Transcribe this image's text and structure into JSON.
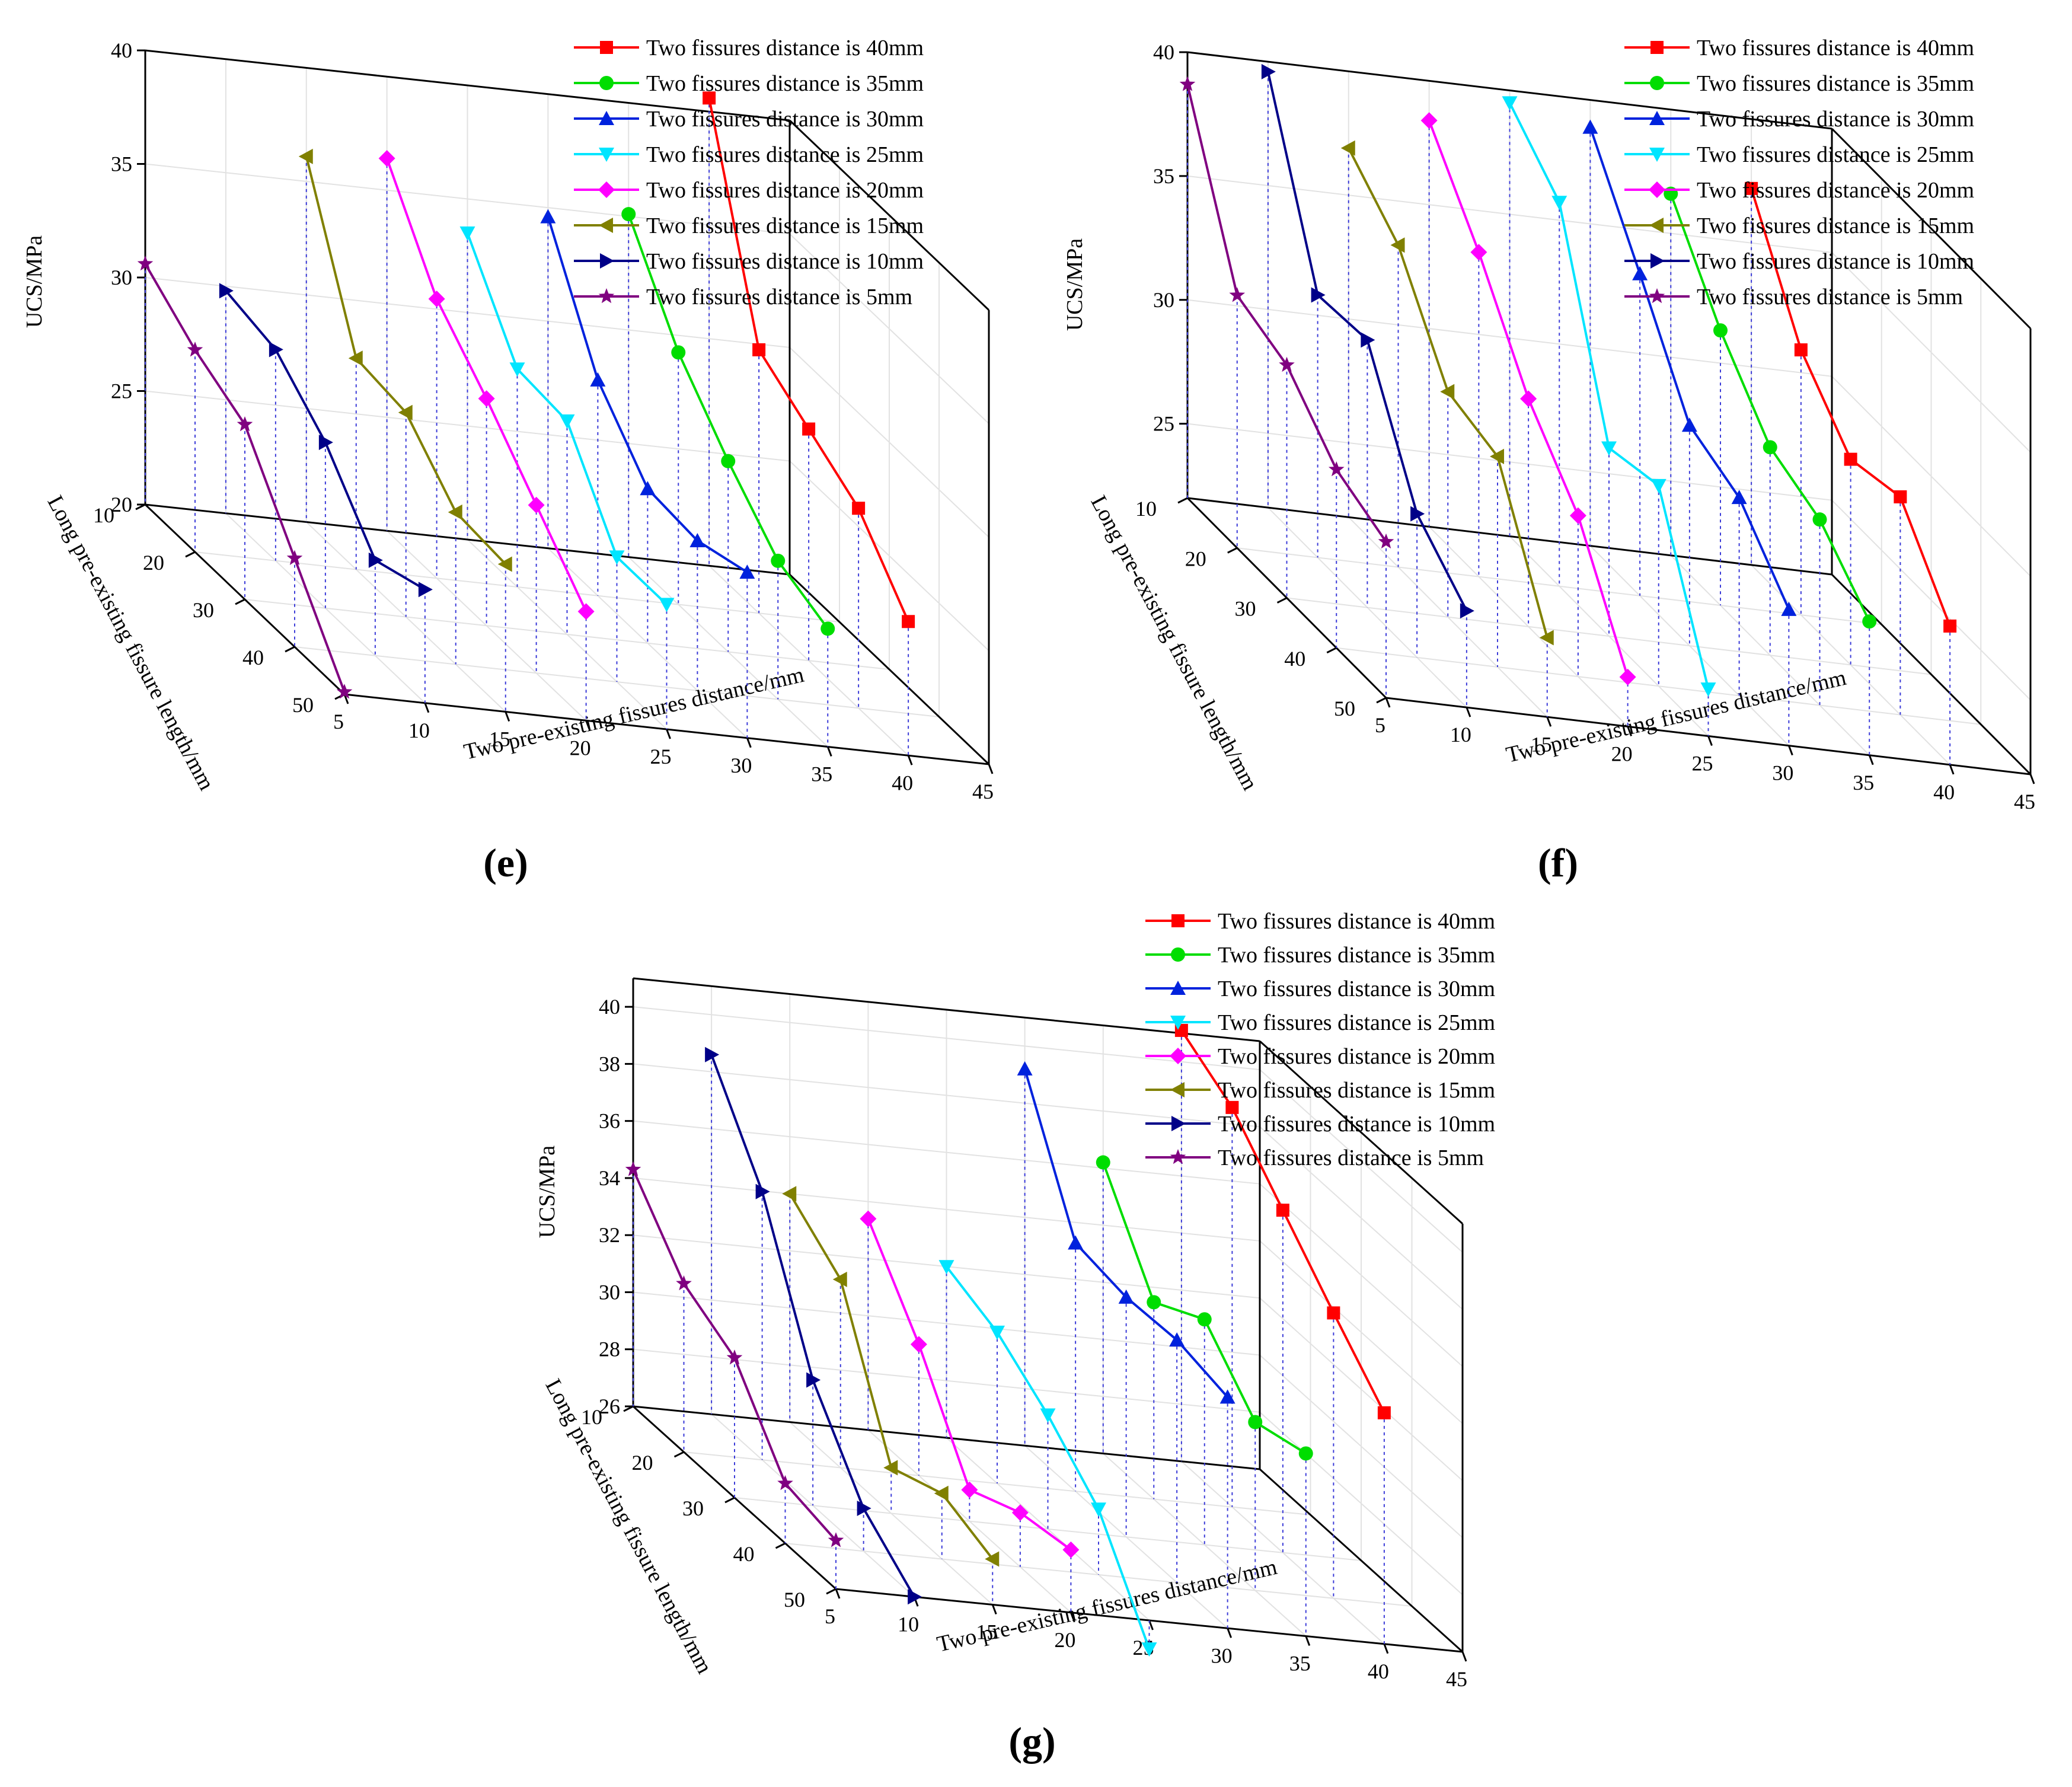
{
  "figure": {
    "series_colors": {
      "40mm": "#ff0000",
      "35mm": "#00dd00",
      "30mm": "#0022dd",
      "25mm": "#00e5ff",
      "20mm": "#ff00ff",
      "15mm": "#808000",
      "10mm": "#000088",
      "5mm": "#800080"
    }
  },
  "chart_data": [
    {
      "panel": "(e)",
      "type": "line",
      "subtype": "3d-waterfall",
      "xlabel": "Two pre-existing fissures distance/mm",
      "ylabel": "Long pre-existing fissure length/mm",
      "zlabel": "UCS/MPa",
      "x_ticks": [
        "5",
        "10",
        "15",
        "20",
        "25",
        "30",
        "35",
        "40",
        "45"
      ],
      "y_ticks": [
        "10",
        "20",
        "30",
        "40",
        "50"
      ],
      "z_ticks": [
        "20",
        "25",
        "30",
        "35",
        "40"
      ],
      "xlim": [
        5,
        45
      ],
      "ylim": [
        10,
        50
      ],
      "zlim": [
        20,
        40
      ],
      "y_points": [
        10,
        20,
        30,
        40,
        50
      ],
      "series": [
        {
          "name": "Two fissures distance is 40mm",
          "key": "40mm",
          "x": 40,
          "marker": "square",
          "values": [
            40.6,
            31.6,
            30.2,
            28.8,
            25.9
          ]
        },
        {
          "name": "Two fissures distance is 35mm",
          "key": "35mm",
          "x": 35,
          "marker": "circle",
          "values": [
            35.1,
            31.1,
            28.4,
            26.1,
            25.2
          ]
        },
        {
          "name": "Two fissures distance is 30mm",
          "key": "30mm",
          "x": 30,
          "marker": "triangle-up",
          "values": [
            34.6,
            29.5,
            26.8,
            26.6,
            27.3
          ]
        },
        {
          "name": "Two fissures distance is 25mm",
          "key": "25mm",
          "x": 25,
          "marker": "triangle-down",
          "values": [
            33.5,
            29.6,
            29.4,
            25.5,
            25.5
          ]
        },
        {
          "name": "Two fissures distance is 20mm",
          "key": "20mm",
          "x": 20,
          "marker": "diamond",
          "values": [
            36.4,
            32.3,
            30.0,
            27.4,
            24.8
          ]
        },
        {
          "name": "Two fissures distance is 15mm",
          "key": "15mm",
          "x": 15,
          "marker": "triangle-left",
          "values": [
            36.1,
            29.3,
            29.0,
            26.7,
            26.5
          ]
        },
        {
          "name": "Two fissures distance is 10mm",
          "key": "10mm",
          "x": 10,
          "marker": "triangle-right",
          "values": [
            29.8,
            29.3,
            27.3,
            24.2,
            25.0
          ]
        },
        {
          "name": "Two fissures distance is 5mm",
          "key": "5mm",
          "x": 5,
          "marker": "star",
          "values": [
            30.6,
            28.9,
            27.7,
            23.9,
            20.1
          ]
        }
      ]
    },
    {
      "panel": "(f)",
      "type": "line",
      "subtype": "3d-waterfall",
      "xlabel": "Two pre-existing fissures distance/mm",
      "ylabel": "Long pre-existing fissure length/mm",
      "zlabel": "UCS/MPa",
      "x_ticks": [
        "5",
        "10",
        "15",
        "20",
        "25",
        "30",
        "35",
        "40",
        "45"
      ],
      "y_ticks": [
        "10",
        "20",
        "30",
        "40",
        "50"
      ],
      "z_ticks": [
        "25",
        "30",
        "35",
        "40"
      ],
      "xlim": [
        5,
        45
      ],
      "ylim": [
        10,
        50
      ],
      "zlim": [
        22,
        40
      ],
      "y_points": [
        10,
        20,
        30,
        40,
        50
      ],
      "series": [
        {
          "name": "Two fissures distance is 40mm",
          "key": "40mm",
          "x": 40,
          "marker": "square",
          "values": [
            37.2,
            32.7,
            30.3,
            30.8,
            27.6
          ]
        },
        {
          "name": "Two fissures distance is 35mm",
          "key": "35mm",
          "x": 35,
          "marker": "circle",
          "values": [
            36.6,
            33.1,
            30.4,
            29.5,
            27.4
          ]
        },
        {
          "name": "Two fissures distance is 30mm",
          "key": "30mm",
          "x": 30,
          "marker": "triangle-up",
          "values": [
            38.9,
            35.0,
            30.9,
            30.0,
            27.5
          ]
        },
        {
          "name": "Two fissures distance is 25mm",
          "key": "25mm",
          "x": 25,
          "marker": "triangle-down",
          "values": [
            39.5,
            37.5,
            29.6,
            30.1,
            23.9
          ]
        },
        {
          "name": "Two fissures distance is 20mm",
          "key": "20mm",
          "x": 20,
          "marker": "diamond",
          "values": [
            38.4,
            35.1,
            31.2,
            28.5,
            24.0
          ]
        },
        {
          "name": "Two fissures distance is 15mm",
          "key": "15mm",
          "x": 15,
          "marker": "triangle-left",
          "values": [
            36.9,
            35.0,
            31.1,
            30.5,
            25.2
          ]
        },
        {
          "name": "Two fissures distance is 10mm",
          "key": "10mm",
          "x": 10,
          "marker": "triangle-right",
          "values": [
            39.6,
            32.6,
            32.8,
            27.8,
            25.9
          ]
        },
        {
          "name": "Two fissures distance is 5mm",
          "key": "5mm",
          "x": 5,
          "marker": "star",
          "values": [
            38.7,
            32.2,
            31.4,
            29.2,
            28.3
          ]
        }
      ]
    },
    {
      "panel": "(g)",
      "type": "line",
      "subtype": "3d-waterfall",
      "xlabel": "Two pre-existing fissures distance/mm",
      "ylabel": "Long pre-existing fissure length/mm",
      "zlabel": "UCS/MPa",
      "x_ticks": [
        "5",
        "10",
        "15",
        "20",
        "25",
        "30",
        "35",
        "40",
        "45"
      ],
      "y_ticks": [
        "10",
        "20",
        "30",
        "40",
        "50"
      ],
      "z_ticks": [
        "26",
        "28",
        "30",
        "32",
        "34",
        "36",
        "38",
        "40"
      ],
      "xlim": [
        5,
        45
      ],
      "ylim": [
        10,
        50
      ],
      "zlim": [
        26,
        41
      ],
      "y_points": [
        10,
        20,
        30,
        40,
        50
      ],
      "series": [
        {
          "name": "Two fissures distance is 40mm",
          "key": "40mm",
          "x": 40,
          "marker": "square",
          "values": [
            41.1,
            40.0,
            38.0,
            36.0,
            34.1
          ]
        },
        {
          "name": "Two fissures distance is 35mm",
          "key": "35mm",
          "x": 35,
          "marker": "circle",
          "values": [
            36.2,
            32.9,
            33.9,
            31.9,
            32.4
          ]
        },
        {
          "name": "Two fissures distance is 30mm",
          "key": "30mm",
          "x": 30,
          "marker": "triangle-up",
          "values": [
            39.2,
            34.7,
            34.4,
            34.5,
            34.1
          ]
        },
        {
          "name": "Two fissures distance is 25mm",
          "key": "25mm",
          "x": 25,
          "marker": "triangle-down",
          "values": [
            32.0,
            31.3,
            30.0,
            28.3,
            25.0
          ]
        },
        {
          "name": "Two fissures distance is 20mm",
          "key": "20mm",
          "x": 20,
          "marker": "diamond",
          "values": [
            33.4,
            30.6,
            27.1,
            27.9,
            28.2
          ]
        },
        {
          "name": "Two fissures distance is 15mm",
          "key": "15mm",
          "x": 15,
          "marker": "triangle-left",
          "values": [
            34.0,
            32.6,
            27.6,
            28.3,
            27.6
          ]
        },
        {
          "name": "Two fissures distance is 10mm",
          "key": "10mm",
          "x": 10,
          "marker": "triangle-right",
          "values": [
            38.6,
            35.4,
            30.4,
            27.5,
            26.0
          ]
        },
        {
          "name": "Two fissures distance is 5mm",
          "key": "5mm",
          "x": 5,
          "marker": "star",
          "values": [
            34.3,
            31.9,
            30.9,
            28.1,
            27.7
          ]
        }
      ]
    }
  ]
}
